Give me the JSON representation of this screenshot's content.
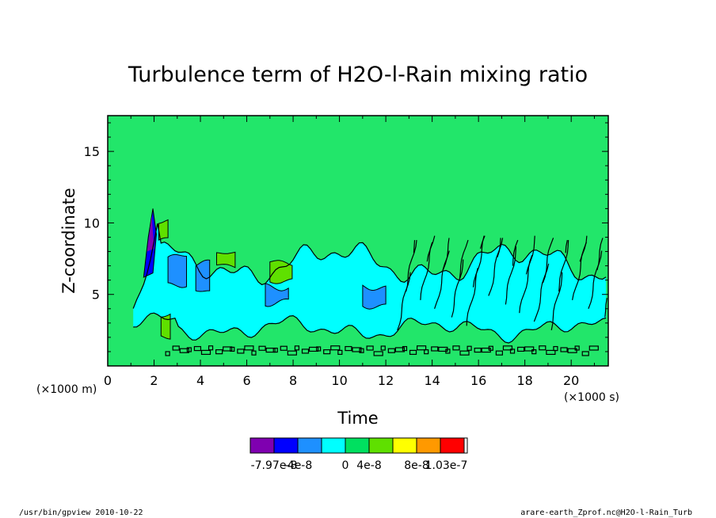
{
  "chart_data": {
    "type": "heatmap",
    "title": "Turbulence term of H2O-l-Rain mixing ratio",
    "xlabel": "Time",
    "ylabel": "Z-coordinate",
    "x_unit": "(×1000 s)",
    "y_unit": "(×1000 m)",
    "xlim": [
      0,
      21.6
    ],
    "ylim": [
      0,
      17.5
    ],
    "x_ticks": [
      "0",
      "2",
      "4",
      "6",
      "8",
      "10",
      "12",
      "14",
      "16",
      "18",
      "20"
    ],
    "y_ticks": [
      "5",
      "10",
      "15"
    ],
    "colorbar": {
      "labels": [
        "-7.97e-8",
        "-4e-8",
        "0",
        "4e-8",
        "8e-8",
        "1.03e-7"
      ],
      "colors": [
        "#7f00b0",
        "#0000ff",
        "#1e90ff",
        "#00ffff",
        "#00e060",
        "#5fe000",
        "#ffff00",
        "#ff9900",
        "#ff0000"
      ]
    },
    "regions": [
      {
        "level": "0 to 4e-8",
        "color": "#22e66a",
        "description": "background, most of the domain"
      },
      {
        "level": "-4e-8 to 0",
        "color": "#00ffff",
        "x_range": [
          1.0,
          21.6
        ],
        "y_range": [
          1.5,
          9.0
        ]
      },
      {
        "level": "-8e-8 to -4e-8",
        "color": "#1e90ff",
        "x_range": [
          1.2,
          12.0
        ],
        "y_range": [
          4.5,
          8.0
        ]
      },
      {
        "level": "< -8e-8",
        "color": "#0000ff",
        "x_range": [
          1.6,
          2.1
        ],
        "y_range": [
          6.0,
          11.0
        ]
      },
      {
        "level": "4e-8 to 8e-8",
        "color": "#5fe000",
        "x_range": [
          2.0,
          8.0
        ],
        "y_range": [
          2.0,
          10.0
        ]
      }
    ]
  },
  "footer": {
    "left": "/usr/bin/gpview  2010-10-22",
    "right": "arare-earth_Zprof.nc@H2O-l-Rain_Turb"
  }
}
